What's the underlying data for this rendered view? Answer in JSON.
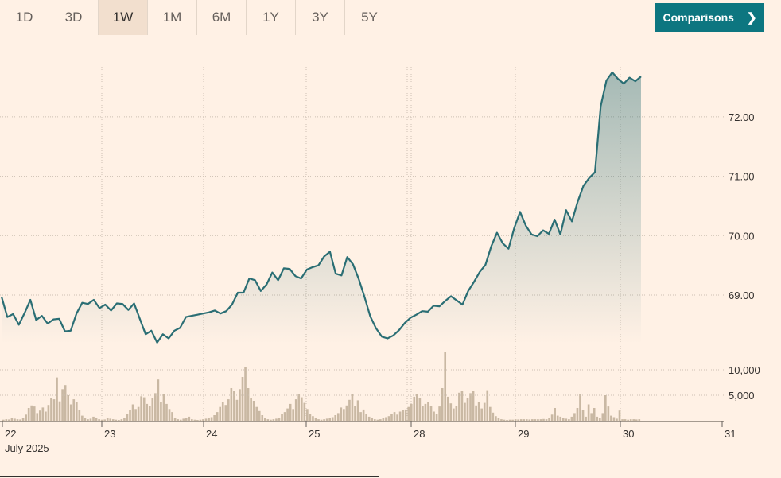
{
  "ranges": [
    "1D",
    "3D",
    "1W",
    "1M",
    "6M",
    "1Y",
    "3Y",
    "5Y"
  ],
  "active_range": "1W",
  "comparisons_label": "Comparisons",
  "colors": {
    "line": "#2a6e74",
    "volume": "#c9b8a3",
    "grid": "#ccbfb2",
    "accent": "#0d7680"
  },
  "chart_data": {
    "type": "area",
    "title": "",
    "x_month_label": "July 2025",
    "x_ticks": [
      "22",
      "23",
      "24",
      "25",
      "28",
      "29",
      "30",
      "31"
    ],
    "y_ticks": [
      69.0,
      70.0,
      71.0,
      72.0
    ],
    "y_tick_labels": [
      "69.00",
      "70.00",
      "71.00",
      "72.00"
    ],
    "ylim": [
      67.6,
      72.9
    ],
    "price": [
      68.97,
      68.63,
      68.68,
      68.5,
      68.7,
      68.92,
      68.58,
      68.65,
      68.52,
      68.59,
      68.6,
      68.39,
      68.4,
      68.69,
      68.87,
      68.85,
      68.92,
      68.78,
      68.84,
      68.74,
      68.86,
      68.85,
      68.75,
      68.86,
      68.6,
      68.34,
      68.4,
      68.2,
      68.34,
      68.27,
      68.4,
      68.45,
      68.63,
      68.65,
      68.67,
      68.69,
      68.71,
      68.74,
      68.69,
      68.73,
      68.84,
      69.04,
      69.04,
      69.28,
      69.25,
      69.07,
      69.18,
      69.38,
      69.25,
      69.45,
      69.44,
      69.32,
      69.28,
      69.43,
      69.47,
      69.5,
      69.65,
      69.73,
      69.36,
      69.33,
      69.64,
      69.52,
      69.27,
      68.97,
      68.64,
      68.44,
      68.3,
      68.27,
      68.32,
      68.41,
      68.53,
      68.62,
      68.67,
      68.73,
      68.72,
      68.82,
      68.81,
      68.9,
      68.98,
      68.91,
      68.84,
      69.07,
      69.22,
      69.39,
      69.51,
      69.82,
      70.05,
      69.87,
      69.78,
      70.13,
      70.4,
      70.17,
      70.02,
      69.99,
      70.09,
      70.03,
      70.27,
      70.02,
      70.43,
      70.24,
      70.57,
      70.84,
      70.97,
      71.07,
      72.18,
      72.61,
      72.75,
      72.64,
      72.56,
      72.66,
      72.6,
      72.68
    ],
    "price_source_max": 72.83,
    "volume_ticks": [
      5000,
      10000
    ],
    "volume_tick_labels": [
      "5,000",
      "10,000"
    ],
    "volume_max": 12000,
    "volume": [
      200,
      300,
      250,
      600,
      400,
      300,
      250,
      500,
      1200,
      2500,
      3000,
      2800,
      1500,
      2000,
      2600,
      1800,
      3100,
      4500,
      4200,
      8500,
      3800,
      6200,
      7000,
      5000,
      3200,
      4200,
      3700,
      2100,
      1000,
      600,
      300,
      400,
      800,
      500,
      300,
      200,
      250,
      600,
      400,
      300,
      200,
      150,
      300,
      500,
      1400,
      2100,
      3200,
      2300,
      2700,
      4800,
      4600,
      3300,
      2900,
      4400,
      5400,
      8100,
      3600,
      5200,
      3300,
      2300,
      1700,
      600,
      300,
      200,
      400,
      600,
      800,
      300,
      200,
      150,
      200,
      300,
      400,
      500,
      700,
      1100,
      1700,
      2700,
      3600,
      3100,
      4200,
      6400,
      5800,
      4100,
      6200,
      8600,
      10500,
      6400,
      4500,
      3900,
      2700,
      1900,
      1100,
      600,
      300,
      200,
      300,
      400,
      600,
      1300,
      1700,
      2400,
      3300,
      2300,
      4200,
      5300,
      4600,
      3500,
      2300,
      1300,
      900,
      600,
      300,
      200,
      300,
      400,
      500,
      700,
      1100,
      1500,
      2600,
      2300,
      3000,
      4100,
      5200,
      2900,
      4000,
      1700,
      2200,
      1400,
      800,
      500,
      300,
      200,
      300,
      500,
      700,
      900,
      1300,
      1700,
      1200,
      1800,
      2100,
      2200,
      2700,
      3300,
      4700,
      5200,
      4400,
      2900,
      3300,
      3700,
      2900,
      1800,
      1300,
      2800,
      6400,
      13600,
      4700,
      3400,
      2400,
      2900,
      5500,
      5900,
      3500,
      4400,
      5400,
      5900,
      3000,
      3700,
      2400,
      3500,
      6000,
      2700,
      1600,
      900,
      500,
      300,
      200,
      150,
      200,
      200,
      300,
      250,
      300,
      300,
      300,
      250,
      300,
      300,
      300,
      300,
      350,
      300,
      500,
      1200,
      2500,
      1000,
      800,
      600,
      400,
      300,
      800,
      1500,
      2500,
      5200,
      2100,
      800,
      3200,
      1500,
      2500,
      800,
      600,
      1500,
      5000,
      2800,
      1000,
      700,
      400,
      2000,
      300,
      300,
      200,
      300,
      300,
      250,
      300
    ]
  }
}
